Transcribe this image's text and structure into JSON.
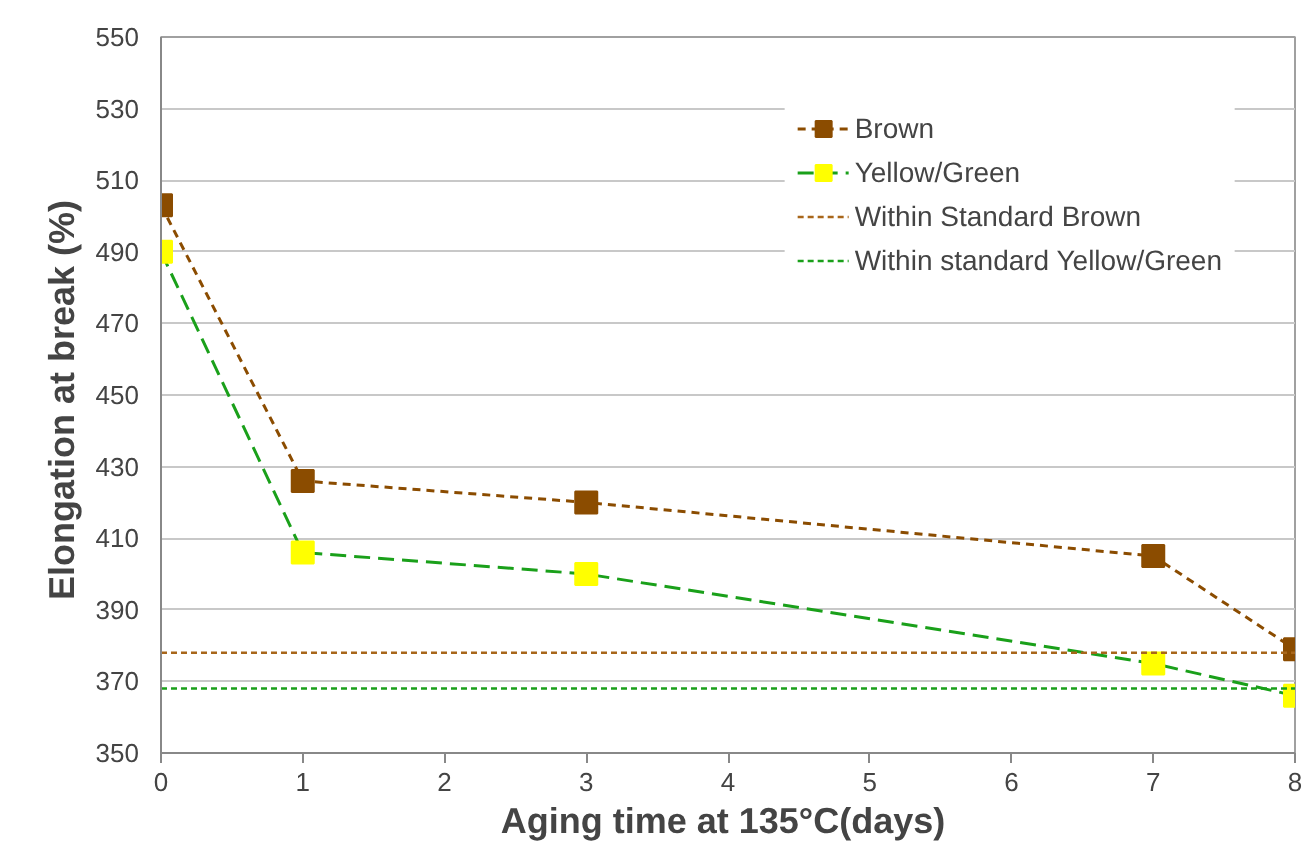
{
  "chart_data": {
    "type": "line",
    "xlabel": "Aging time  at 135°C(days)",
    "ylabel": "Elongation  at break (%)",
    "x": [
      0,
      1,
      3,
      7,
      8
    ],
    "series": [
      {
        "name": "Brown",
        "color": "#8b4c00",
        "values": [
          503,
          426,
          420,
          405,
          379
        ],
        "line_style": "dashed"
      },
      {
        "name": "Yellow/Green",
        "color": "#1aa01a",
        "colors": [
          "#ffff00",
          "#ffff00",
          "#ffff00",
          "#ffff00",
          "#ffff00"
        ],
        "values": [
          490,
          406,
          400,
          375,
          366
        ],
        "line_style": "dashed"
      }
    ],
    "ref_lines": [
      {
        "axis": "y",
        "value": 378,
        "label": "Within Standard Brown",
        "color": "#a8661a",
        "line_style": "dotted"
      },
      {
        "axis": "y",
        "value": 368,
        "label": "Within standard Yellow/Green",
        "color": "#1aa01a",
        "line_style": "dotted"
      }
    ],
    "xlim": [
      0,
      8
    ],
    "xticks": [
      0,
      1,
      2,
      3,
      4,
      5,
      6,
      7,
      8
    ],
    "ylim": [
      350,
      550
    ],
    "yticks": [
      350,
      370,
      390,
      410,
      430,
      450,
      470,
      490,
      510,
      530,
      550
    ],
    "grid": "y",
    "legend": "top right",
    "marker": "square"
  }
}
